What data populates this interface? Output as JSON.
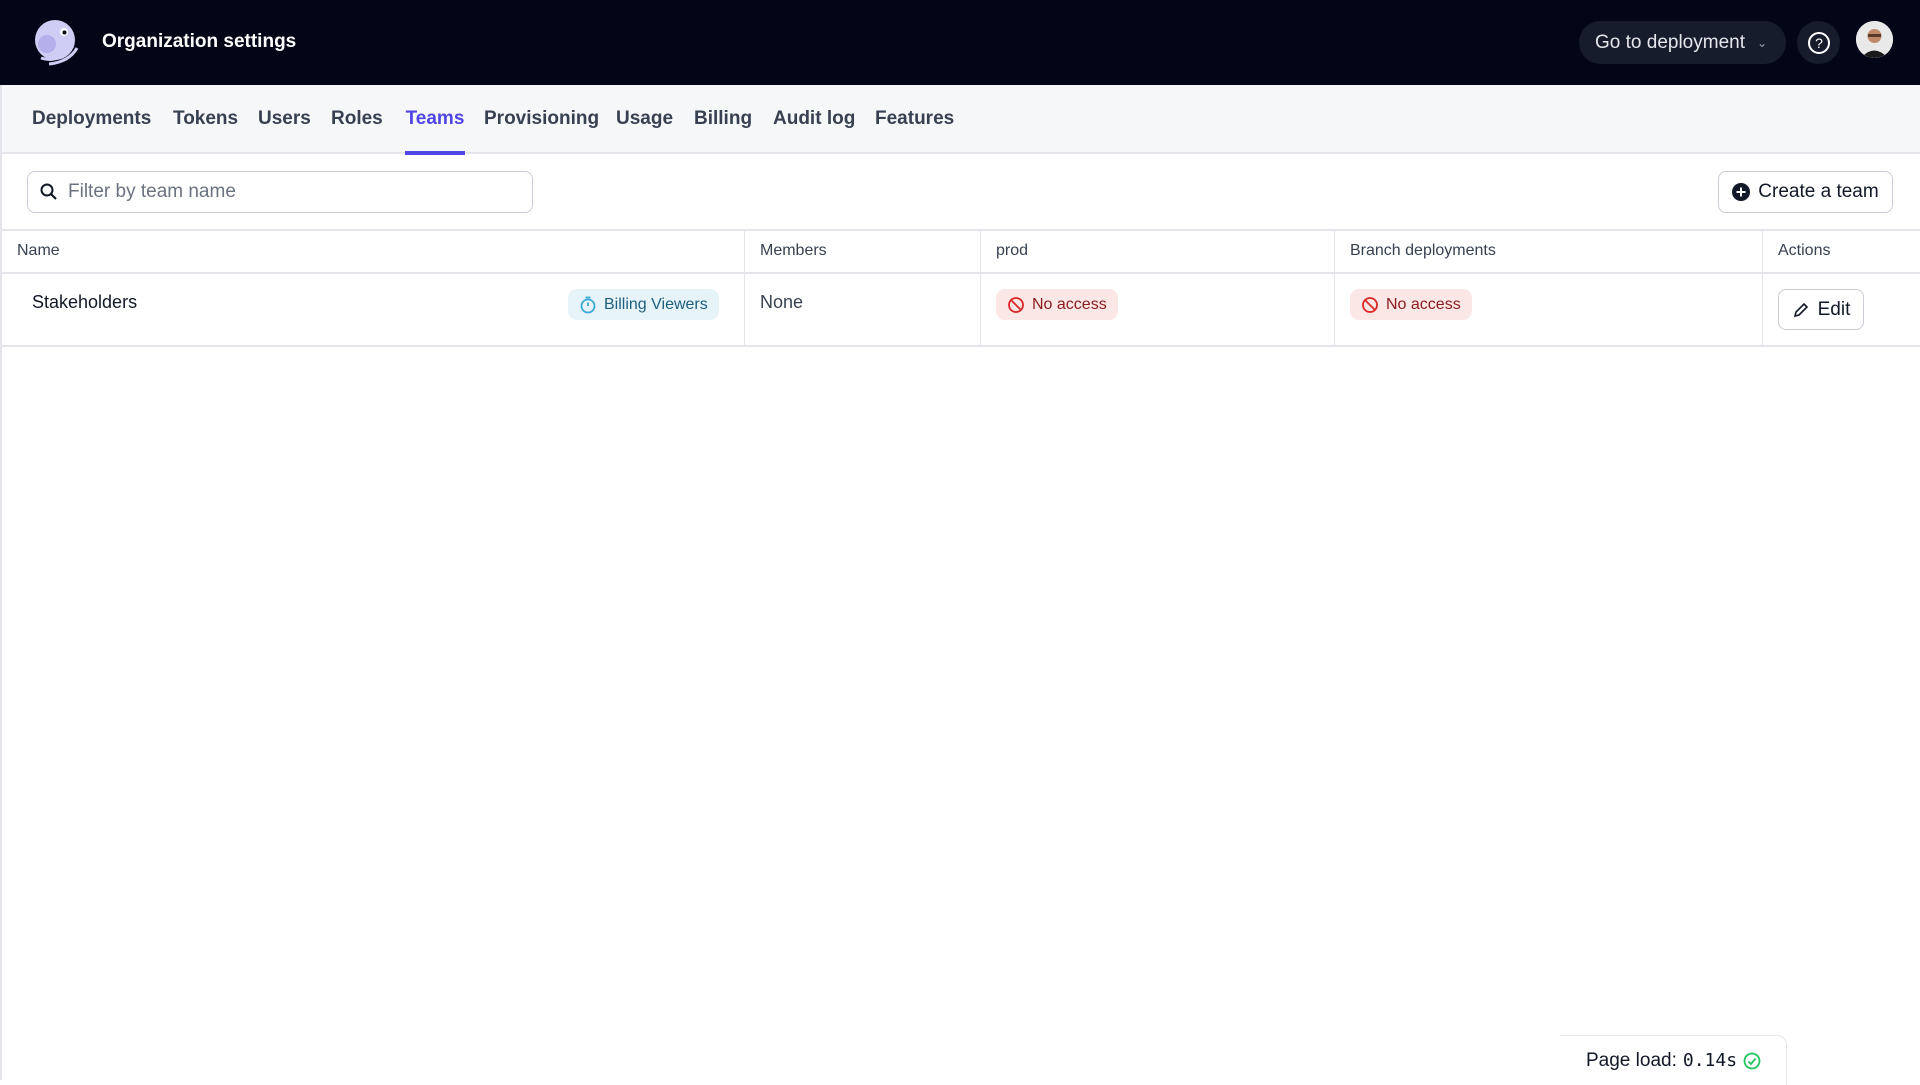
{
  "header": {
    "title": "Organization settings",
    "go_to_deployment": "Go to deployment"
  },
  "nav": {
    "tabs": [
      {
        "label": "Deployments"
      },
      {
        "label": "Tokens"
      },
      {
        "label": "Users"
      },
      {
        "label": "Roles"
      },
      {
        "label": "Teams",
        "active": true
      },
      {
        "label": "Provisioning"
      },
      {
        "label": "Usage"
      },
      {
        "label": "Billing"
      },
      {
        "label": "Audit log"
      },
      {
        "label": "Features"
      }
    ]
  },
  "toolbar": {
    "search_placeholder": "Filter by team name",
    "search_value": "",
    "create_label": "Create a team"
  },
  "table": {
    "columns": [
      "Name",
      "Members",
      "prod",
      "Branch deployments",
      "Actions"
    ],
    "rows": [
      {
        "name": "Stakeholders",
        "role_badge": "Billing Viewers",
        "members": "None",
        "prod": "No access",
        "branch": "No access",
        "action": "Edit"
      }
    ]
  },
  "footer": {
    "page_load_label": "Page load:",
    "page_load_value": "0.14s"
  },
  "colors": {
    "accent": "#4f46e5",
    "header_bg": "#030616",
    "no_access_bg": "#fbe7e6",
    "badge_blue_bg": "#e6f4fa",
    "success": "#22c55e"
  }
}
